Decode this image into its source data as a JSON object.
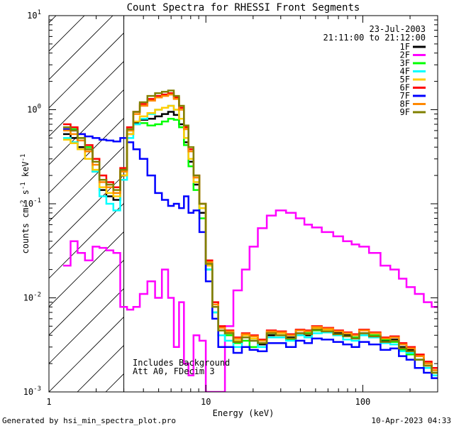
{
  "chart_data": {
    "type": "line",
    "title": "Count Spectra for RHESSI Front Segments",
    "xlabel": "Energy (keV)",
    "ylabel": "counts cm-2 s-1 keV-1",
    "xscale": "log",
    "yscale": "log",
    "xlim": [
      1,
      300
    ],
    "ylim": [
      0.001,
      10
    ],
    "x_ticks": [
      {
        "value": 1,
        "label": "1"
      },
      {
        "value": 10,
        "label": "10"
      },
      {
        "value": 100,
        "label": "100"
      }
    ],
    "y_ticks": [
      {
        "value": 0.001,
        "base": "10",
        "exp": "-3"
      },
      {
        "value": 0.01,
        "base": "10",
        "exp": "-2"
      },
      {
        "value": 0.1,
        "base": "10",
        "exp": "-1"
      },
      {
        "value": 1,
        "base": "10",
        "exp": "0"
      },
      {
        "value": 10,
        "base": "10",
        "exp": "1"
      }
    ],
    "date": "23-Jul-2003",
    "time_range": "21:11:00 to 21:12:00",
    "legend_position": "top-right",
    "hatched_region": {
      "x_min": 1,
      "x_max": 3
    },
    "annotations": [
      "Includes Background",
      "Att A0, FDecim 3"
    ],
    "x": [
      1.3,
      1.45,
      1.6,
      1.8,
      2.0,
      2.2,
      2.45,
      2.7,
      3.0,
      3.3,
      3.6,
      4.0,
      4.5,
      5.0,
      5.5,
      6.0,
      6.5,
      7.0,
      7.5,
      8.0,
      8.7,
      9.5,
      10.5,
      11.5,
      12.5,
      14,
      16,
      18,
      20,
      23,
      26,
      30,
      35,
      40,
      45,
      50,
      60,
      70,
      80,
      90,
      100,
      120,
      140,
      160,
      180,
      200,
      230,
      260,
      290
    ],
    "series": [
      {
        "name": "1F",
        "color": "#000000",
        "values": [
          0.55,
          0.5,
          0.4,
          0.3,
          0.22,
          0.14,
          0.12,
          0.11,
          0.2,
          0.55,
          0.72,
          0.78,
          0.8,
          0.85,
          0.9,
          0.95,
          0.88,
          0.7,
          0.45,
          0.28,
          0.16,
          0.08,
          0.02,
          0.008,
          0.004,
          0.004,
          0.0035,
          0.004,
          0.0035,
          0.0032,
          0.004,
          0.004,
          0.0038,
          0.0042,
          0.004,
          0.0045,
          0.0045,
          0.0042,
          0.004,
          0.0038,
          0.0042,
          0.004,
          0.0035,
          0.0036,
          0.003,
          0.0028,
          0.0022,
          0.002,
          0.0015
        ]
      },
      {
        "name": "2F",
        "color": "#ff00ff",
        "values": [
          0.022,
          0.04,
          0.03,
          0.025,
          0.035,
          0.034,
          0.032,
          0.03,
          0.008,
          0.0075,
          0.008,
          0.011,
          0.015,
          0.01,
          0.02,
          0.01,
          0.003,
          0.009,
          0.002,
          0.0015,
          0.004,
          0.0035,
          0.001,
          0.001,
          0.001,
          0.005,
          0.012,
          0.02,
          0.035,
          0.055,
          0.075,
          0.085,
          0.08,
          0.07,
          0.06,
          0.056,
          0.05,
          0.045,
          0.04,
          0.037,
          0.035,
          0.03,
          0.022,
          0.02,
          0.016,
          0.013,
          0.011,
          0.009,
          0.008
        ]
      },
      {
        "name": "3F",
        "color": "#00ff00",
        "values": [
          0.65,
          0.62,
          0.5,
          0.4,
          0.28,
          0.18,
          0.15,
          0.13,
          0.22,
          0.6,
          0.7,
          0.72,
          0.68,
          0.7,
          0.75,
          0.8,
          0.78,
          0.65,
          0.42,
          0.25,
          0.14,
          0.07,
          0.02,
          0.007,
          0.0045,
          0.004,
          0.0033,
          0.0035,
          0.003,
          0.0035,
          0.0042,
          0.004,
          0.0036,
          0.004,
          0.0042,
          0.0045,
          0.0043,
          0.004,
          0.0042,
          0.0038,
          0.004,
          0.004,
          0.0036,
          0.0034,
          0.0028,
          0.0025,
          0.0022,
          0.002,
          0.0016
        ]
      },
      {
        "name": "4F",
        "color": "#00ffff",
        "values": [
          0.5,
          0.45,
          0.38,
          0.3,
          0.22,
          0.12,
          0.1,
          0.085,
          0.18,
          0.5,
          0.7,
          0.8,
          0.9,
          1.0,
          1.05,
          1.1,
          1.0,
          0.8,
          0.5,
          0.3,
          0.17,
          0.09,
          0.02,
          0.007,
          0.004,
          0.0035,
          0.003,
          0.0038,
          0.0035,
          0.003,
          0.0038,
          0.0038,
          0.0035,
          0.004,
          0.0038,
          0.0042,
          0.0043,
          0.004,
          0.0036,
          0.0035,
          0.004,
          0.0038,
          0.0033,
          0.0032,
          0.0027,
          0.0026,
          0.0022,
          0.0018,
          0.0015
        ]
      },
      {
        "name": "5F",
        "color": "#ffcc00",
        "values": [
          0.48,
          0.44,
          0.38,
          0.3,
          0.23,
          0.15,
          0.13,
          0.12,
          0.2,
          0.55,
          0.75,
          0.85,
          0.92,
          1.0,
          1.05,
          1.1,
          1.0,
          0.8,
          0.5,
          0.3,
          0.17,
          0.09,
          0.022,
          0.008,
          0.0045,
          0.0042,
          0.0035,
          0.004,
          0.0037,
          0.0035,
          0.0043,
          0.0042,
          0.004,
          0.0045,
          0.0044,
          0.0048,
          0.0046,
          0.0044,
          0.0042,
          0.004,
          0.0045,
          0.0042,
          0.0037,
          0.0038,
          0.0032,
          0.003,
          0.0024,
          0.002,
          0.0017
        ]
      },
      {
        "name": "6F",
        "color": "#ff0000",
        "values": [
          0.7,
          0.65,
          0.55,
          0.42,
          0.3,
          0.2,
          0.17,
          0.15,
          0.24,
          0.65,
          0.95,
          1.15,
          1.3,
          1.4,
          1.45,
          1.5,
          1.35,
          1.05,
          0.65,
          0.38,
          0.2,
          0.1,
          0.025,
          0.009,
          0.005,
          0.0045,
          0.0038,
          0.0042,
          0.004,
          0.0036,
          0.0045,
          0.0044,
          0.0041,
          0.0046,
          0.0045,
          0.005,
          0.0048,
          0.0045,
          0.0043,
          0.0041,
          0.0046,
          0.0043,
          0.0038,
          0.0039,
          0.0033,
          0.003,
          0.0025,
          0.0021,
          0.0018
        ]
      },
      {
        "name": "7F",
        "color": "#0000ff",
        "values": [
          0.62,
          0.6,
          0.55,
          0.52,
          0.5,
          0.48,
          0.47,
          0.46,
          0.5,
          0.45,
          0.38,
          0.3,
          0.2,
          0.13,
          0.11,
          0.095,
          0.1,
          0.09,
          0.12,
          0.08,
          0.085,
          0.05,
          0.015,
          0.006,
          0.003,
          0.003,
          0.0026,
          0.003,
          0.0028,
          0.0027,
          0.0033,
          0.0033,
          0.003,
          0.0035,
          0.0033,
          0.0037,
          0.0036,
          0.0034,
          0.0032,
          0.003,
          0.0034,
          0.0032,
          0.0028,
          0.0029,
          0.0024,
          0.0022,
          0.0018,
          0.0016,
          0.0014
        ]
      },
      {
        "name": "8F",
        "color": "#ff8800",
        "values": [
          0.6,
          0.55,
          0.47,
          0.36,
          0.26,
          0.17,
          0.15,
          0.13,
          0.22,
          0.6,
          0.9,
          1.1,
          1.25,
          1.35,
          1.4,
          1.45,
          1.3,
          1.0,
          0.62,
          0.36,
          0.19,
          0.1,
          0.024,
          0.0085,
          0.0048,
          0.0044,
          0.0037,
          0.0041,
          0.0039,
          0.0035,
          0.0044,
          0.0043,
          0.004,
          0.0045,
          0.0044,
          0.0049,
          0.0047,
          0.0044,
          0.0042,
          0.004,
          0.0045,
          0.0042,
          0.0037,
          0.0038,
          0.0032,
          0.0029,
          0.0024,
          0.002,
          0.0017
        ]
      },
      {
        "name": "9F",
        "color": "#808000",
        "values": [
          0.65,
          0.6,
          0.5,
          0.38,
          0.28,
          0.18,
          0.16,
          0.14,
          0.23,
          0.62,
          0.95,
          1.2,
          1.4,
          1.5,
          1.55,
          1.6,
          1.4,
          1.1,
          0.68,
          0.4,
          0.2,
          0.1,
          0.023,
          0.008,
          0.0045,
          0.0042,
          0.0034,
          0.0038,
          0.0035,
          0.0033,
          0.0042,
          0.004,
          0.0037,
          0.0042,
          0.0041,
          0.0046,
          0.0044,
          0.0041,
          0.0039,
          0.0037,
          0.0042,
          0.0039,
          0.0034,
          0.0035,
          0.0029,
          0.0027,
          0.0022,
          0.0019,
          0.0016
        ]
      }
    ]
  },
  "footer": {
    "generated_by": "Generated by hsi_min_spectra_plot.pro",
    "generated_date": "10-Apr-2023 04:33"
  }
}
